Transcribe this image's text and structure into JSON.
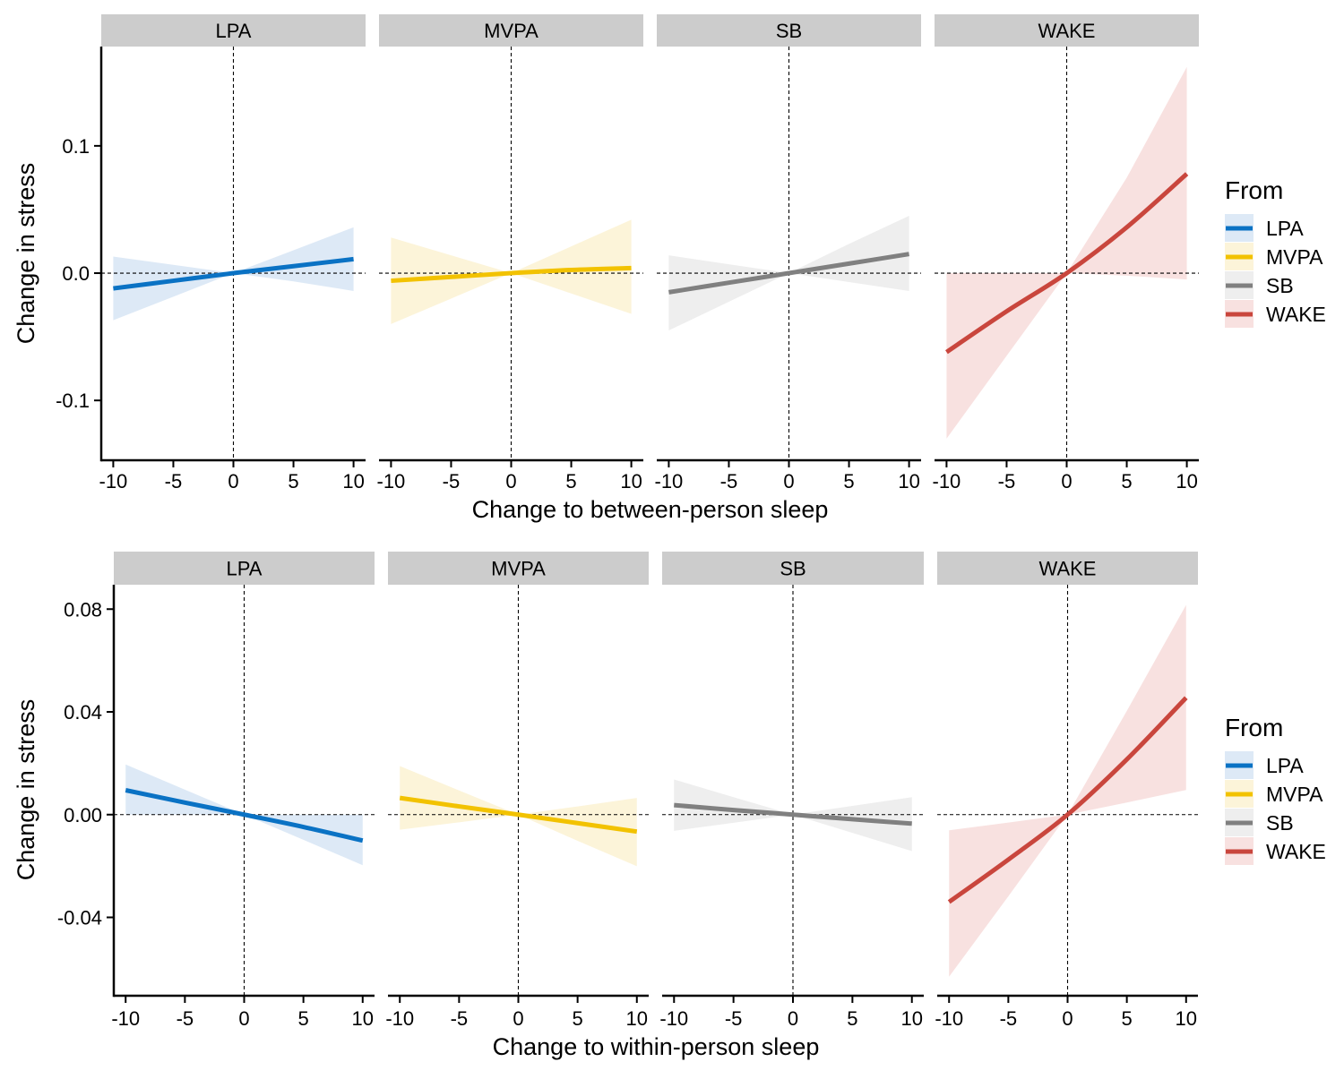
{
  "legend": {
    "title": "From",
    "entries": [
      {
        "label": "LPA",
        "color": "#0a72c4",
        "fill": "#dde9f6"
      },
      {
        "label": "MVPA",
        "color": "#f2c200",
        "fill": "#fcf4d9"
      },
      {
        "label": "SB",
        "color": "#808080",
        "fill": "#eeeeee"
      },
      {
        "label": "WAKE",
        "color": "#c9463d",
        "fill": "#f8e1e0"
      }
    ]
  },
  "chart_data": [
    {
      "type": "line",
      "xlabel": "Change to between-person sleep",
      "ylabel": "Change in stress",
      "xlim": [
        -11,
        11
      ],
      "ylim": [
        -0.147,
        0.178
      ],
      "xticks": [
        -10,
        -5,
        0,
        5,
        10
      ],
      "xtick_labels": [
        "-10",
        "-5",
        "0",
        "5",
        "10"
      ],
      "yticks": [
        0.1,
        0.0,
        -0.1
      ],
      "ytick_labels": [
        "0.1",
        "0.0",
        "-0.1"
      ],
      "grid": false,
      "facets": [
        {
          "label": "LPA",
          "color": "#0a72c4",
          "fill": "#dde9f6",
          "x": [
            -10,
            -5,
            0,
            5,
            10
          ],
          "y": [
            -0.012,
            -0.006,
            0.0,
            0.0055,
            0.011
          ],
          "lower": [
            -0.037,
            -0.0185,
            0.0,
            -0.0065,
            -0.014
          ],
          "upper": [
            0.013,
            0.0065,
            0.0,
            0.018,
            0.036
          ]
        },
        {
          "label": "MVPA",
          "color": "#f2c200",
          "fill": "#fcf4d9",
          "x": [
            -10,
            -5,
            0,
            5,
            10
          ],
          "y": [
            -0.006,
            -0.003,
            0.0,
            0.0025,
            0.004
          ],
          "lower": [
            -0.04,
            -0.02,
            0.0,
            -0.016,
            -0.032
          ],
          "upper": [
            0.028,
            0.014,
            0.0,
            0.021,
            0.042
          ]
        },
        {
          "label": "SB",
          "color": "#808080",
          "fill": "#eeeeee",
          "x": [
            -10,
            -5,
            0,
            5,
            10
          ],
          "y": [
            -0.015,
            -0.0075,
            0.0,
            0.0075,
            0.015
          ],
          "lower": [
            -0.045,
            -0.0225,
            0.0,
            -0.007,
            -0.014
          ],
          "upper": [
            0.014,
            0.007,
            0.0,
            0.023,
            0.045
          ]
        },
        {
          "label": "WAKE",
          "color": "#c9463d",
          "fill": "#f8e1e0",
          "x": [
            -10,
            -5,
            0,
            5,
            10
          ],
          "y": [
            -0.062,
            -0.03,
            0.0,
            0.036,
            0.078
          ],
          "lower": [
            -0.13,
            -0.065,
            0.0,
            -0.002,
            -0.005
          ],
          "upper": [
            0.0,
            0.0,
            0.0,
            0.075,
            0.162
          ]
        }
      ]
    },
    {
      "type": "line",
      "xlabel": "Change to within-person sleep",
      "ylabel": "Change in stress",
      "xlim": [
        -11,
        11
      ],
      "ylim": [
        -0.0705,
        0.0895
      ],
      "xticks": [
        -10,
        -5,
        0,
        5,
        10
      ],
      "xtick_labels": [
        "-10",
        "-5",
        "0",
        "5",
        "10"
      ],
      "yticks": [
        0.08,
        0.04,
        0.0,
        -0.04
      ],
      "ytick_labels": [
        "0.08",
        "0.04",
        "0.00",
        "-0.04"
      ],
      "grid": false,
      "facets": [
        {
          "label": "LPA",
          "color": "#0a72c4",
          "fill": "#dde9f6",
          "x": [
            -10,
            -5,
            0,
            5,
            10
          ],
          "y": [
            0.0095,
            0.0047,
            0.0,
            -0.0048,
            -0.0101
          ],
          "lower": [
            0.0,
            0.0,
            0.0,
            -0.0098,
            -0.0197
          ],
          "upper": [
            0.0195,
            0.0097,
            0.0,
            0.0,
            0.0
          ]
        },
        {
          "label": "MVPA",
          "color": "#f2c200",
          "fill": "#fcf4d9",
          "x": [
            -10,
            -5,
            0,
            5,
            10
          ],
          "y": [
            0.0065,
            0.0032,
            0.0,
            -0.0033,
            -0.0066
          ],
          "lower": [
            -0.0059,
            -0.003,
            0.0,
            -0.0102,
            -0.0201
          ],
          "upper": [
            0.0189,
            0.0094,
            0.0,
            0.0032,
            0.0065
          ]
        },
        {
          "label": "SB",
          "color": "#808080",
          "fill": "#eeeeee",
          "x": [
            -10,
            -5,
            0,
            5,
            10
          ],
          "y": [
            0.0037,
            0.0018,
            0.0,
            -0.0018,
            -0.0035
          ],
          "lower": [
            -0.0063,
            -0.0032,
            0.0,
            -0.0071,
            -0.0142
          ],
          "upper": [
            0.0137,
            0.0068,
            0.0,
            0.0034,
            0.0068
          ]
        },
        {
          "label": "WAKE",
          "color": "#c9463d",
          "fill": "#f8e1e0",
          "x": [
            -10,
            -5,
            0,
            5,
            10
          ],
          "y": [
            -0.034,
            -0.0175,
            0.0,
            0.0215,
            0.0455
          ],
          "lower": [
            -0.0631,
            -0.0318,
            0.0,
            0.0047,
            0.0096
          ],
          "upper": [
            -0.0061,
            -0.0031,
            0.0,
            0.0404,
            0.0816
          ]
        }
      ]
    }
  ]
}
